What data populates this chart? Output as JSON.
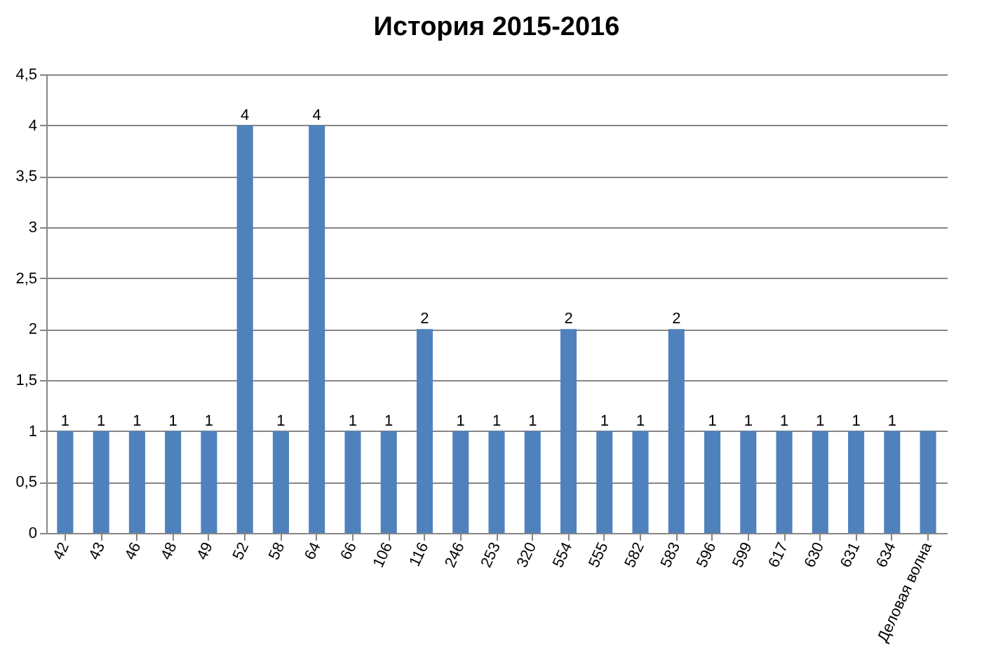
{
  "chart_data": {
    "type": "bar",
    "title": "История 2015-2016",
    "categories": [
      "42",
      "43",
      "46",
      "48",
      "49",
      "52",
      "58",
      "64",
      "66",
      "106",
      "116",
      "246",
      "253",
      "320",
      "554",
      "555",
      "582",
      "583",
      "596",
      "599",
      "617",
      "630",
      "631",
      "634",
      "Деловая волна"
    ],
    "values": [
      1,
      1,
      1,
      1,
      1,
      4,
      1,
      4,
      1,
      1,
      2,
      1,
      1,
      1,
      2,
      1,
      1,
      2,
      1,
      1,
      1,
      1,
      1,
      1,
      1
    ],
    "value_labels": [
      "1",
      "1",
      "1",
      "1",
      "1",
      "4",
      "1",
      "4",
      "1",
      "1",
      "2",
      "1",
      "1",
      "1",
      "2",
      "1",
      "1",
      "2",
      "1",
      "1",
      "1",
      "1",
      "1",
      "1",
      null
    ],
    "color": "#4f81bd",
    "ylim": [
      0,
      4.5
    ],
    "yticks": [
      0,
      {
        "value": 0.5,
        "label": "0,5"
      },
      1,
      {
        "value": 1.5,
        "label": "1,5"
      },
      2,
      {
        "value": 2.5,
        "label": "2,5"
      },
      3,
      {
        "value": 3.5,
        "label": "3,5"
      },
      4,
      {
        "value": 4.5,
        "label": "4,5"
      }
    ],
    "grid": "y"
  }
}
